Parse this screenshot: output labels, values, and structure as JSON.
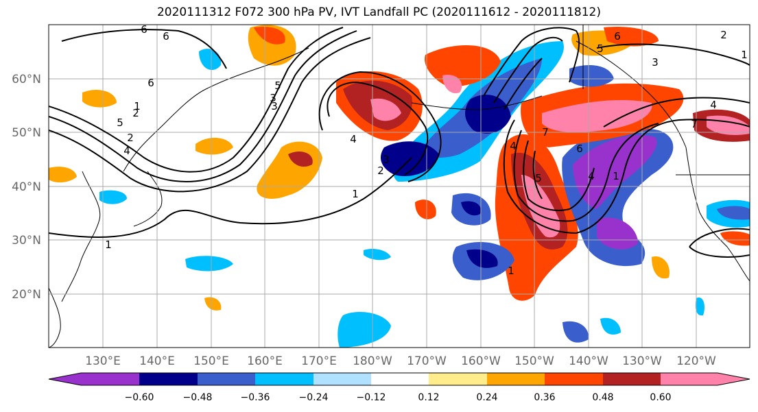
{
  "title": "2020111312 F072 300 hPa PV, IVT Landfall PC (2020111612 - 2020111812)",
  "map": {
    "lat_labels": [
      "60°N",
      "50°N",
      "40°N",
      "30°N",
      "20°N"
    ],
    "lon_labels": [
      "130°E",
      "140°E",
      "150°E",
      "160°E",
      "170°E",
      "180°W",
      "170°W",
      "160°W",
      "150°W",
      "140°W",
      "130°W",
      "120°W"
    ]
  },
  "colorbar": {
    "ticks": [
      "−0.60",
      "−0.48",
      "−0.36",
      "−0.24",
      "−0.12",
      "0.12",
      "0.24",
      "0.36",
      "0.48",
      "0.60"
    ],
    "colors": [
      "#9932cc",
      "#00008b",
      "#3a5fcd",
      "#00bfff",
      "#b0e2ff",
      "#ffffff",
      "#ffec8b",
      "#ffa500",
      "#ff4500",
      "#b22222",
      "#ff82ab"
    ]
  },
  "contour_labels": [
    "6",
    "6",
    "6",
    "5",
    "5",
    "4",
    "4",
    "3",
    "3",
    "2",
    "2",
    "1",
    "1",
    "1",
    "7",
    "7",
    "6",
    "5",
    "4",
    "3",
    "2",
    "1",
    "6",
    "5",
    "4",
    "3",
    "2",
    "1",
    "4",
    "1"
  ]
}
